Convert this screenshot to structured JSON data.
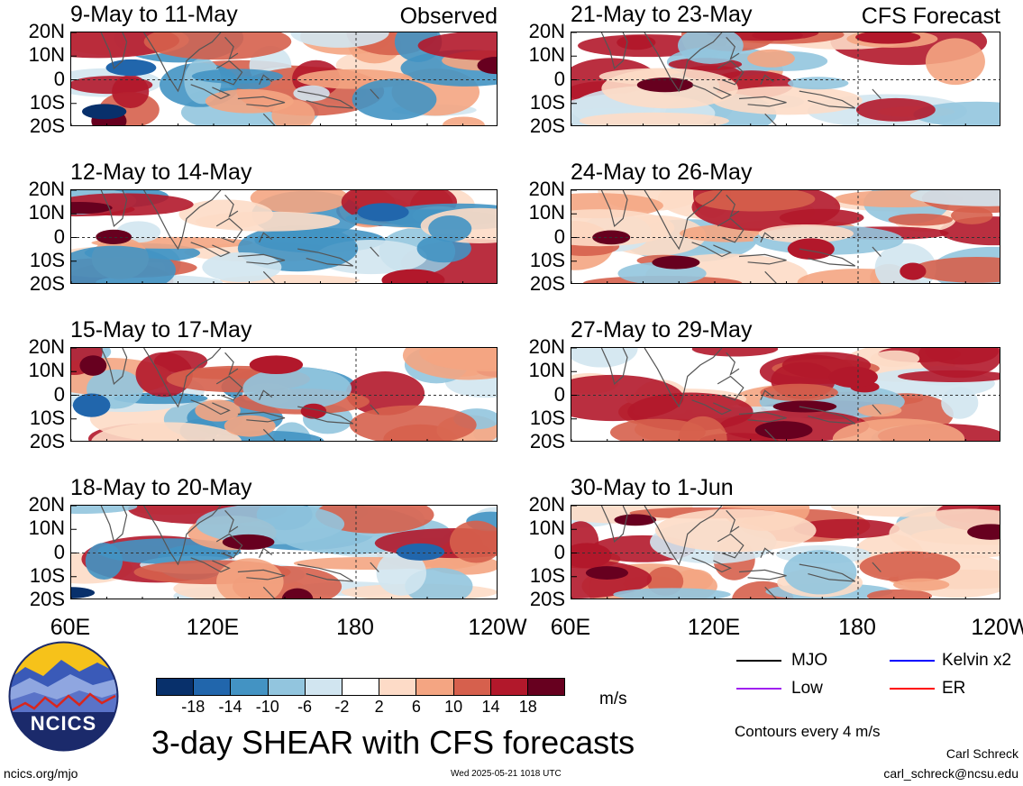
{
  "panels": [
    {
      "title": "9-May to 11-May",
      "tag": "Observed",
      "seed": 11
    },
    {
      "title": "12-May to 14-May",
      "tag": "",
      "seed": 23
    },
    {
      "title": "15-May to 17-May",
      "tag": "",
      "seed": 37
    },
    {
      "title": "18-May to 20-May",
      "tag": "",
      "seed": 41
    },
    {
      "title": "21-May to 23-May",
      "tag": "CFS Forecast",
      "seed": 53
    },
    {
      "title": "24-May to 26-May",
      "tag": "",
      "seed": 67
    },
    {
      "title": "27-May to 29-May",
      "tag": "",
      "seed": 71
    },
    {
      "title": "30-May to 1-Jun",
      "tag": "",
      "seed": 89
    }
  ],
  "y_ticks": [
    "20N",
    "10N",
    "0",
    "10S",
    "20S"
  ],
  "x_ticks": [
    "60E",
    "120E",
    "180",
    "120W"
  ],
  "colorbar": {
    "colors": [
      "#08306b",
      "#2166ac",
      "#4393c3",
      "#92c5de",
      "#d1e5f0",
      "#ffffff",
      "#fddbc7",
      "#f4a582",
      "#d6604d",
      "#b2182b",
      "#67001f"
    ],
    "labels": [
      "-18",
      "-14",
      "-10",
      "-6",
      "-2",
      "2",
      "6",
      "10",
      "14",
      "18"
    ],
    "units": "m/s"
  },
  "legend": {
    "items": [
      {
        "label": "MJO",
        "color": "#000000"
      },
      {
        "label": "Kelvin x2",
        "color": "#0000ff"
      },
      {
        "label": "Low",
        "color": "#a020f0"
      },
      {
        "label": "ER",
        "color": "#ff0000"
      }
    ],
    "contours": "Contours every 4 m/s"
  },
  "logo_text": "NCICS",
  "main_title": "3-day SHEAR with CFS forecasts",
  "footer": {
    "left": "ncics.org/mjo",
    "center": "Wed 2025-05-21 1018 UTC",
    "author": "Carl Schreck",
    "email": "carl_schreck@ncsu.edu"
  },
  "chart_data": {
    "type": "heatmap",
    "variable": "3-day SHEAR",
    "units": "m/s",
    "x_range": [
      "60E",
      "120W"
    ],
    "y_range": [
      "20S",
      "20N"
    ],
    "color_levels": [
      -18,
      -14,
      -10,
      -6,
      -2,
      2,
      6,
      10,
      14,
      18
    ],
    "panels": [
      "9-May to 11-May",
      "12-May to 14-May",
      "15-May to 17-May",
      "18-May to 20-May",
      "21-May to 23-May",
      "24-May to 26-May",
      "27-May to 29-May",
      "30-May to 1-Jun"
    ]
  }
}
